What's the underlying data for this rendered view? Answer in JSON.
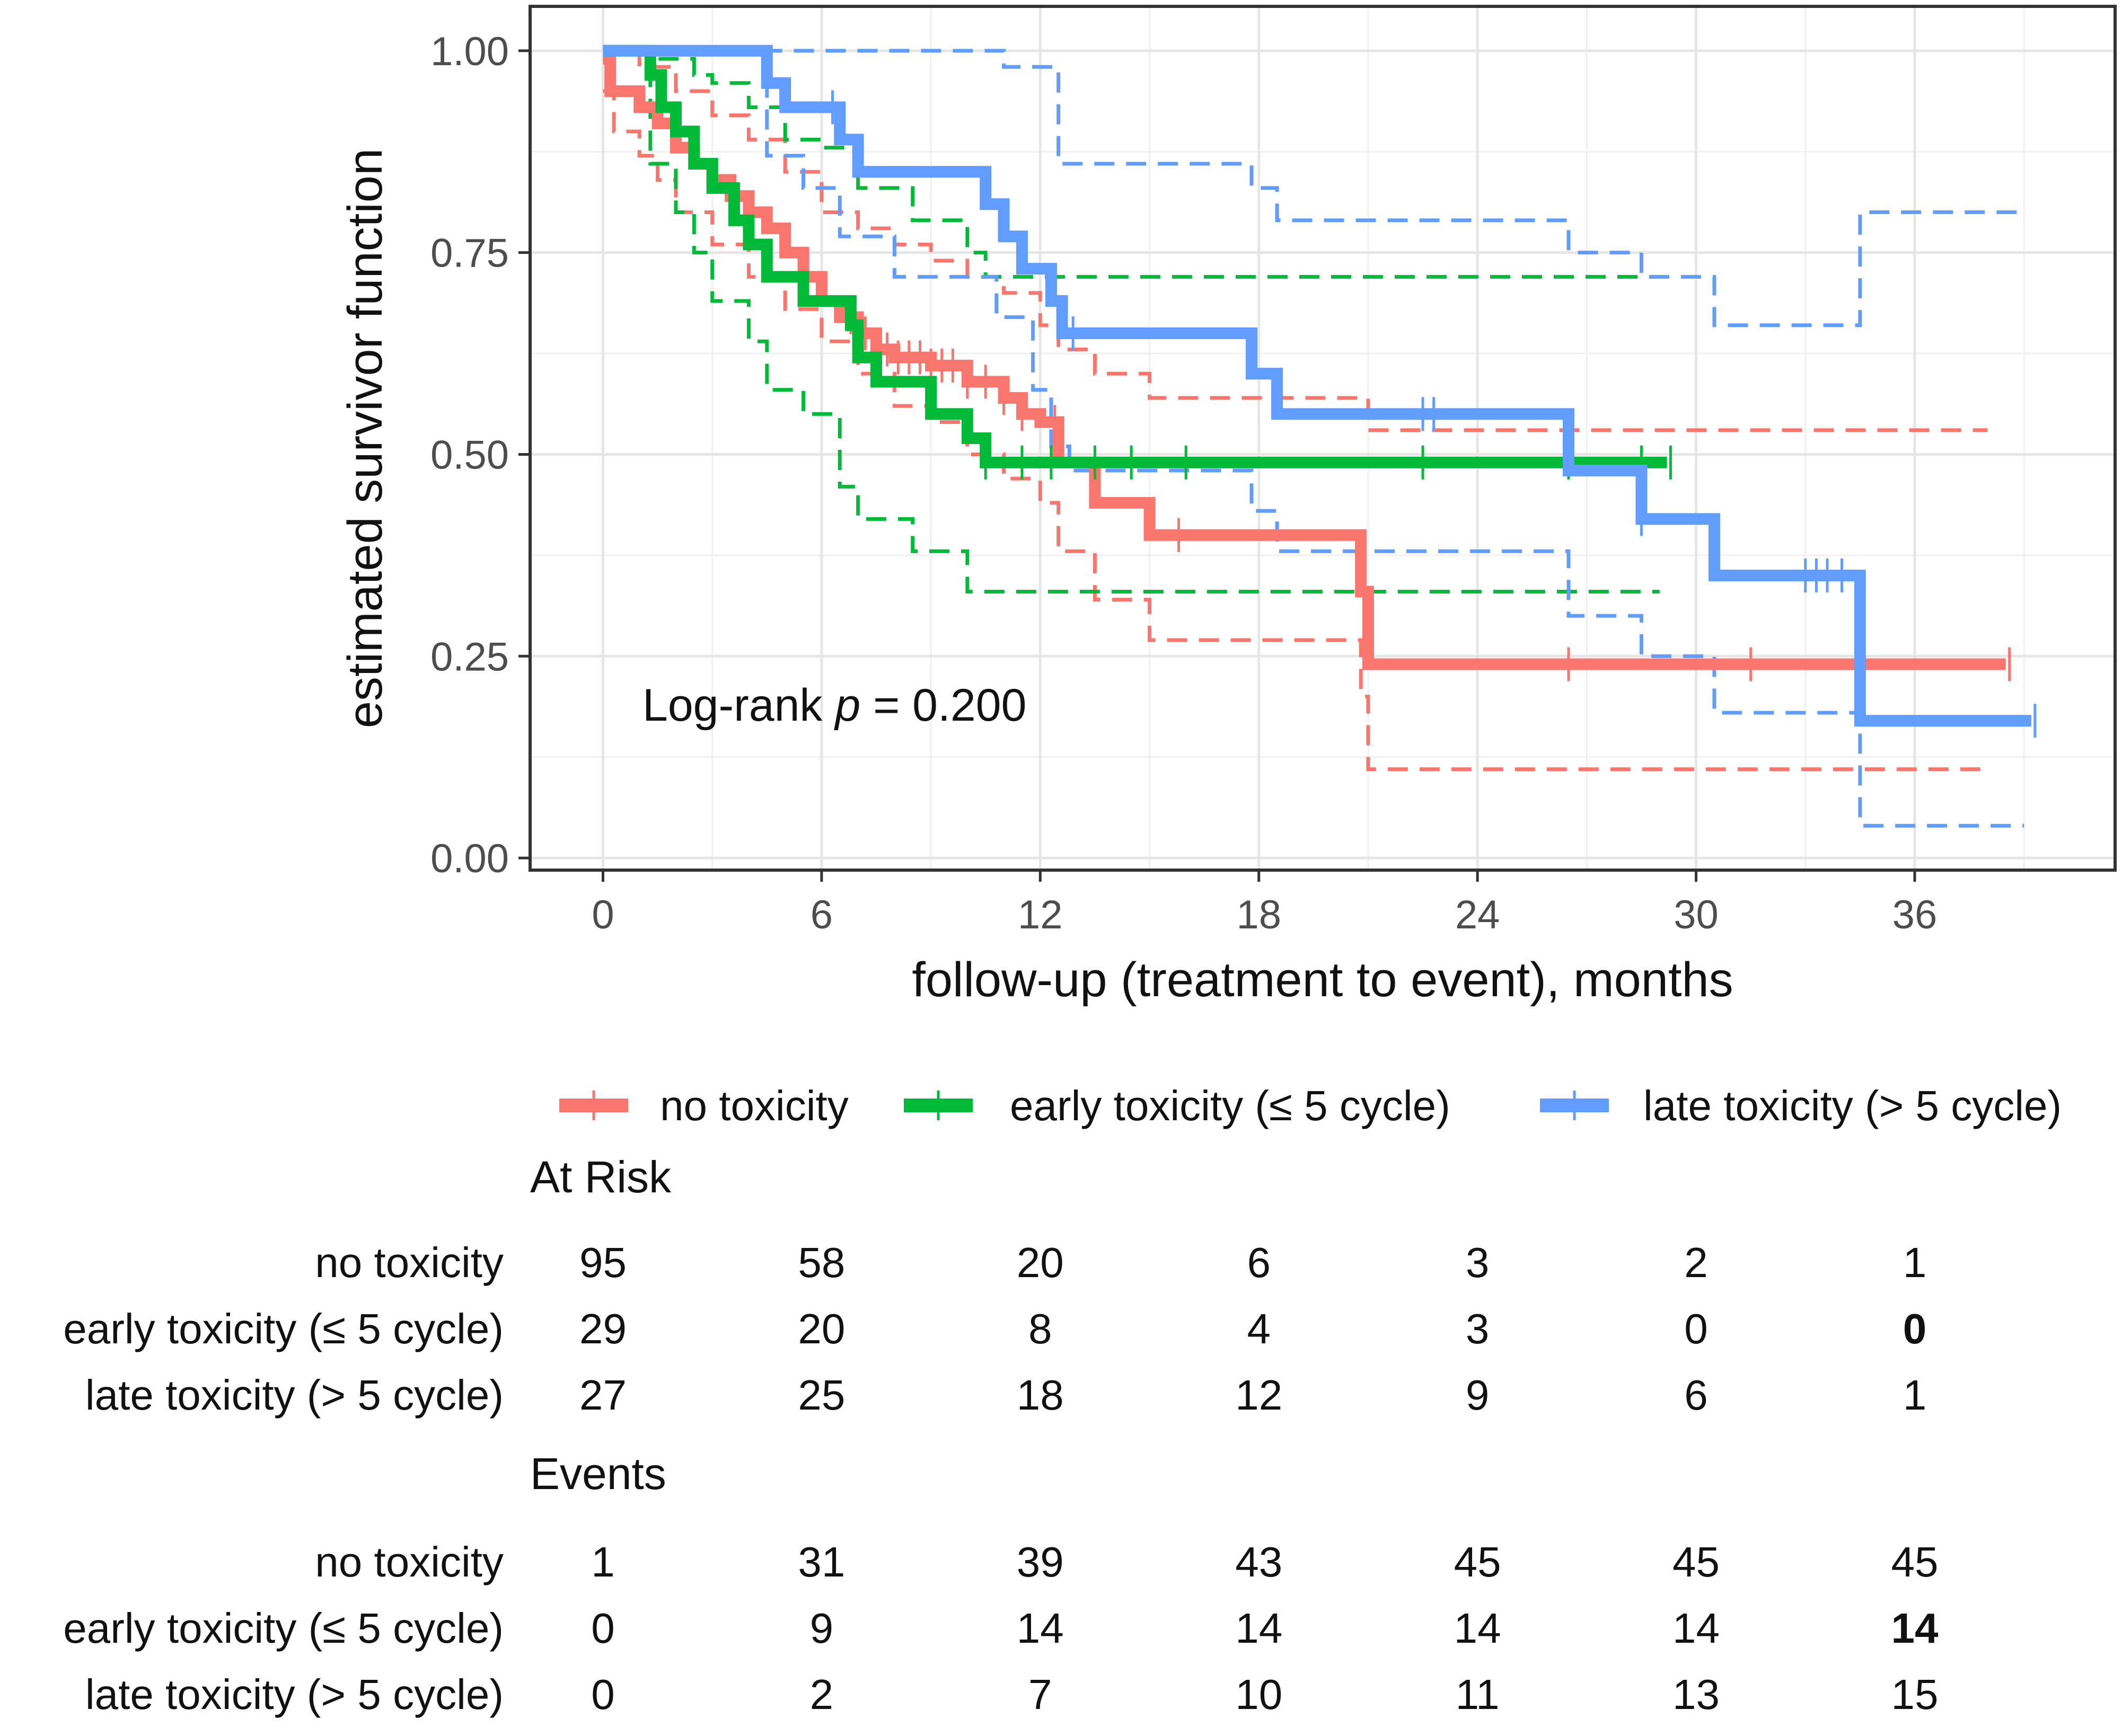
{
  "chart_data": {
    "type": "line",
    "subtype": "kaplan-meier",
    "xlabel": "follow-up (treatment to event), months",
    "ylabel": "estimated survivor function",
    "xlim": [
      -2,
      41.5
    ],
    "ylim": [
      -0.015,
      1.055
    ],
    "x_ticks": [
      0,
      6,
      12,
      18,
      24,
      30,
      36
    ],
    "x_tick_labels": [
      "0",
      "6",
      "12",
      "18",
      "24",
      "30",
      "36"
    ],
    "y_ticks": [
      0,
      0.25,
      0.5,
      0.75,
      1
    ],
    "y_tick_labels": [
      "0.00",
      "0.25",
      "0.50",
      "0.75",
      "1.00"
    ],
    "grid": true,
    "annotation": {
      "prefix": "Log-rank ",
      "italic": "p",
      "suffix": " = 0.200"
    },
    "series": [
      {
        "name": "no toxicity",
        "color": "#F8766D",
        "steps": [
          [
            0,
            0.99
          ],
          [
            0.2,
            0.95
          ],
          [
            1,
            0.93
          ],
          [
            1.5,
            0.91
          ],
          [
            2,
            0.88
          ],
          [
            2.5,
            0.86
          ],
          [
            3,
            0.84
          ],
          [
            3.5,
            0.82
          ],
          [
            4,
            0.8
          ],
          [
            4.5,
            0.78
          ],
          [
            5,
            0.75
          ],
          [
            5.5,
            0.72
          ],
          [
            6,
            0.69
          ],
          [
            6.5,
            0.67
          ],
          [
            7,
            0.65
          ],
          [
            7.5,
            0.63
          ],
          [
            8,
            0.62
          ],
          [
            9,
            0.61
          ],
          [
            10,
            0.59
          ],
          [
            11,
            0.57
          ],
          [
            11.5,
            0.55
          ],
          [
            12,
            0.54
          ],
          [
            12.5,
            0.49
          ],
          [
            13.5,
            0.44
          ],
          [
            15,
            0.4
          ],
          [
            20.8,
            0.33
          ],
          [
            21,
            0.24
          ],
          [
            38.5,
            0.24
          ]
        ],
        "lower": [
          [
            0,
            0.95
          ],
          [
            0.3,
            0.9
          ],
          [
            1,
            0.87
          ],
          [
            1.5,
            0.84
          ],
          [
            2,
            0.8
          ],
          [
            3,
            0.76
          ],
          [
            4,
            0.72
          ],
          [
            5,
            0.68
          ],
          [
            6,
            0.64
          ],
          [
            7,
            0.6
          ],
          [
            8,
            0.56
          ],
          [
            9,
            0.54
          ],
          [
            10,
            0.5
          ],
          [
            11,
            0.47
          ],
          [
            12,
            0.44
          ],
          [
            12.5,
            0.38
          ],
          [
            13.5,
            0.32
          ],
          [
            15,
            0.27
          ],
          [
            20.8,
            0.2
          ],
          [
            21,
            0.11
          ],
          [
            38,
            0.11
          ]
        ],
        "upper": [
          [
            0,
            1.0
          ],
          [
            1,
            0.98
          ],
          [
            2,
            0.95
          ],
          [
            3,
            0.92
          ],
          [
            4,
            0.89
          ],
          [
            5,
            0.85
          ],
          [
            6,
            0.8
          ],
          [
            7,
            0.78
          ],
          [
            8,
            0.76
          ],
          [
            9,
            0.74
          ],
          [
            10,
            0.72
          ],
          [
            11,
            0.7
          ],
          [
            12,
            0.66
          ],
          [
            12.5,
            0.63
          ],
          [
            13.5,
            0.6
          ],
          [
            15,
            0.57
          ],
          [
            21,
            0.53
          ],
          [
            38,
            0.53
          ]
        ],
        "censor_times": [
          6.8,
          7.2,
          7.5,
          7.8,
          8.1,
          8.4,
          8.7,
          9.0,
          9.3,
          9.6,
          10.0,
          10.5,
          11.0,
          11.5,
          12.4,
          15.8,
          26.5,
          31.5,
          38.6
        ],
        "at_risk": [
          95,
          58,
          20,
          6,
          3,
          2,
          1
        ],
        "events": [
          1,
          31,
          39,
          43,
          45,
          45,
          45
        ]
      },
      {
        "name": "early toxicity (≤ 5 cycle)",
        "color": "#00BA38",
        "steps": [
          [
            0,
            1.0
          ],
          [
            1.3,
            0.97
          ],
          [
            1.6,
            0.93
          ],
          [
            2,
            0.9
          ],
          [
            2.5,
            0.86
          ],
          [
            3,
            0.83
          ],
          [
            3.6,
            0.79
          ],
          [
            4,
            0.76
          ],
          [
            4.5,
            0.72
          ],
          [
            5.5,
            0.69
          ],
          [
            6.8,
            0.66
          ],
          [
            7,
            0.62
          ],
          [
            7.5,
            0.59
          ],
          [
            9,
            0.55
          ],
          [
            10,
            0.52
          ],
          [
            10.5,
            0.49
          ],
          [
            29.2,
            0.49
          ]
        ],
        "lower": [
          [
            0,
            1.0
          ],
          [
            1.3,
            0.86
          ],
          [
            2,
            0.8
          ],
          [
            2.5,
            0.75
          ],
          [
            3,
            0.69
          ],
          [
            4,
            0.64
          ],
          [
            4.5,
            0.58
          ],
          [
            5.5,
            0.55
          ],
          [
            6.5,
            0.46
          ],
          [
            7,
            0.42
          ],
          [
            8.5,
            0.38
          ],
          [
            10,
            0.33
          ],
          [
            29,
            0.33
          ]
        ],
        "upper": [
          [
            0,
            1.0
          ],
          [
            1.5,
            0.99
          ],
          [
            2.5,
            0.97
          ],
          [
            3,
            0.96
          ],
          [
            4,
            0.93
          ],
          [
            5,
            0.89
          ],
          [
            6,
            0.88
          ],
          [
            7,
            0.83
          ],
          [
            8.5,
            0.79
          ],
          [
            10,
            0.75
          ],
          [
            10.5,
            0.72
          ],
          [
            29,
            0.72
          ]
        ],
        "censor_times": [
          10.5,
          11.5,
          12.3,
          13.5,
          14.5,
          16,
          22.5,
          26.5,
          28.5,
          29.3
        ],
        "at_risk": [
          29,
          20,
          8,
          4,
          3,
          0,
          0
        ],
        "events": [
          0,
          9,
          14,
          14,
          14,
          14,
          14
        ]
      },
      {
        "name": "late toxicity (> 5 cycle)",
        "color": "#619CFF",
        "steps": [
          [
            0,
            1.0
          ],
          [
            4.5,
            0.96
          ],
          [
            5,
            0.93
          ],
          [
            6.5,
            0.89
          ],
          [
            7,
            0.85
          ],
          [
            8.5,
            0.85
          ],
          [
            10.5,
            0.81
          ],
          [
            11,
            0.77
          ],
          [
            11.5,
            0.73
          ],
          [
            12.3,
            0.69
          ],
          [
            12.6,
            0.65
          ],
          [
            17.8,
            0.6
          ],
          [
            18.5,
            0.55
          ],
          [
            26.5,
            0.48
          ],
          [
            28.5,
            0.42
          ],
          [
            30.5,
            0.35
          ],
          [
            34.5,
            0.17
          ],
          [
            39.2,
            0.17
          ]
        ],
        "lower": [
          [
            0,
            1.0
          ],
          [
            4.5,
            0.87
          ],
          [
            5.5,
            0.83
          ],
          [
            6.5,
            0.77
          ],
          [
            8,
            0.72
          ],
          [
            10.8,
            0.67
          ],
          [
            11.8,
            0.58
          ],
          [
            12.3,
            0.51
          ],
          [
            12.8,
            0.48
          ],
          [
            17.8,
            0.43
          ],
          [
            18.5,
            0.38
          ],
          [
            26.5,
            0.3
          ],
          [
            28.5,
            0.25
          ],
          [
            30.5,
            0.18
          ],
          [
            34.5,
            0.04
          ],
          [
            39,
            0.04
          ]
        ],
        "upper": [
          [
            0,
            1.0
          ],
          [
            4.5,
            1.0
          ],
          [
            11,
            0.98
          ],
          [
            12.5,
            0.86
          ],
          [
            17.8,
            0.83
          ],
          [
            18.5,
            0.79
          ],
          [
            26.5,
            0.75
          ],
          [
            28.5,
            0.72
          ],
          [
            30.5,
            0.66
          ],
          [
            34.5,
            0.8
          ],
          [
            39,
            0.8
          ]
        ],
        "censor_times": [
          6.3,
          12.9,
          22.5,
          22.8,
          28.5,
          33,
          33.3,
          33.6,
          34,
          39.3
        ],
        "at_risk": [
          27,
          25,
          18,
          12,
          9,
          6,
          1
        ],
        "events": [
          0,
          2,
          7,
          10,
          11,
          13,
          15
        ]
      }
    ],
    "legend": {
      "position": "bottom",
      "entries": [
        "no toxicity",
        "early toxicity (≤ 5 cycle)",
        "late toxicity (> 5 cycle)"
      ]
    }
  },
  "risk_table": {
    "at_risk_title": "At Risk",
    "events_title": "Events",
    "row_labels": [
      "no toxicity",
      "early toxicity (≤ 5 cycle)",
      "late toxicity (> 5 cycle)"
    ]
  }
}
